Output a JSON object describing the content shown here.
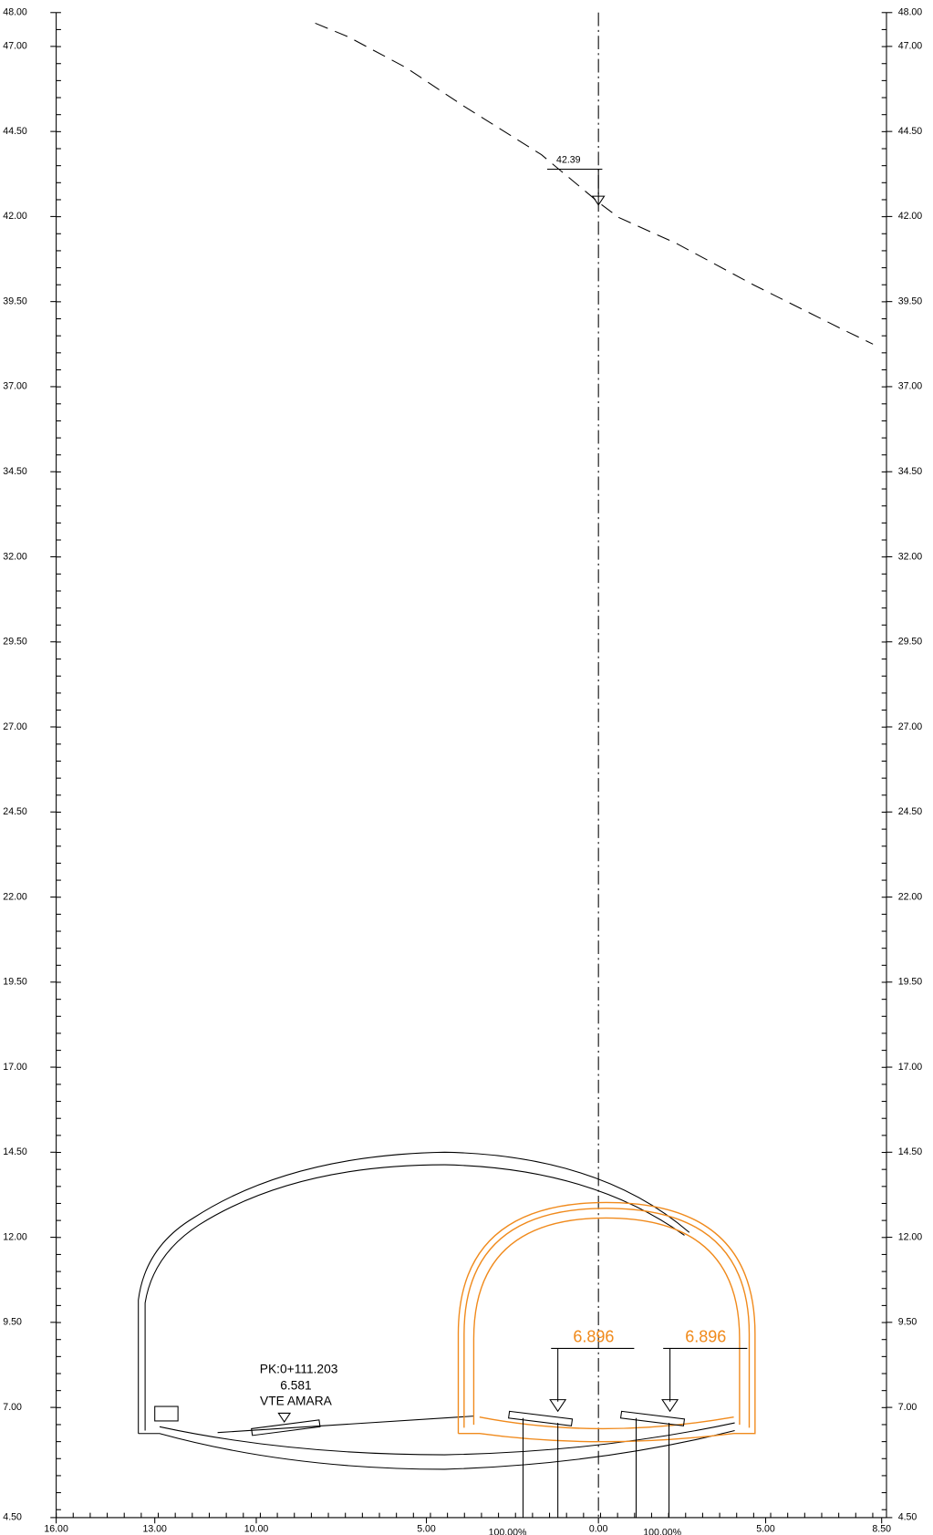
{
  "left_axis": {
    "labels": [
      "48.00",
      "47.00",
      "44.50",
      "42.00",
      "39.50",
      "37.00",
      "34.50",
      "32.00",
      "29.50",
      "27.00",
      "24.50",
      "22.00",
      "19.50",
      "17.00",
      "14.50",
      "12.00",
      "9.50",
      "7.00",
      "4.50"
    ]
  },
  "right_axis": {
    "labels": [
      "48.00",
      "47.00",
      "44.50",
      "42.00",
      "39.50",
      "37.00",
      "34.50",
      "32.00",
      "29.50",
      "27.00",
      "24.50",
      "22.00",
      "19.50",
      "17.00",
      "14.50",
      "12.00",
      "9.50",
      "7.00",
      "4.50"
    ]
  },
  "bottom_axis": {
    "labels": [
      "16.00",
      "13.00",
      "10.00",
      "5.00",
      "0.00",
      "5.00",
      "8.50"
    ]
  },
  "annotations": {
    "terrain_level": "42.39",
    "level_left": "6.896",
    "level_right": "6.896",
    "pk": "PK:0+111.203",
    "vte_level": "6.581",
    "vte_name": "VTE AMARA",
    "slope_left": "100.00%",
    "slope_right": "100.00%"
  }
}
